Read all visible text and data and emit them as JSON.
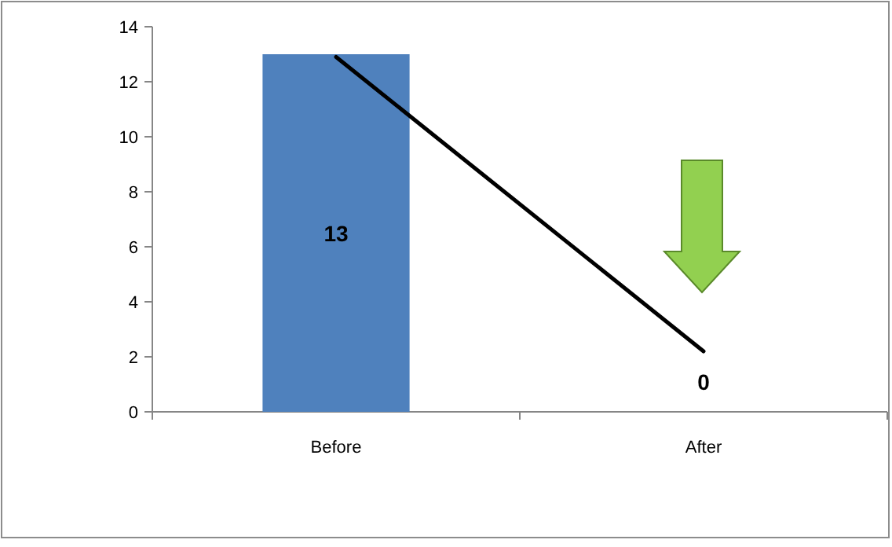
{
  "chart_data": {
    "type": "bar",
    "categories": [
      "Before",
      "After"
    ],
    "series": [
      {
        "color": "#4f81bd",
        "values": [
          13,
          0
        ],
        "value_labels": [
          "13",
          "0"
        ]
      },
      {
        "type": "line",
        "color": "#000000",
        "values": [
          12.9,
          2.2
        ]
      }
    ],
    "ylim": [
      0,
      14
    ],
    "yticks": [
      0,
      2,
      4,
      6,
      8,
      10,
      12,
      14
    ],
    "grid": false,
    "marker": "none",
    "line_style": "solid"
  }
}
